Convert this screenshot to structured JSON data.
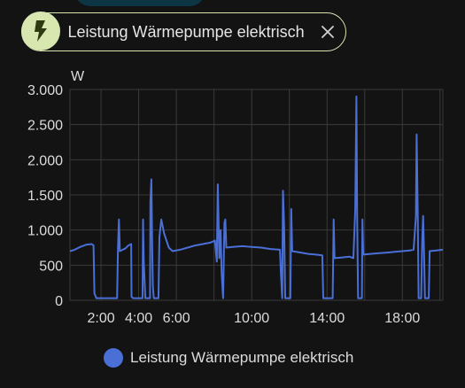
{
  "colors": {
    "background": "#131313",
    "chip_border": "#d8e6b0",
    "chip_icon_bg": "#d8e6b0",
    "series": "#4a6fd6",
    "grid": "#3a3a3a"
  },
  "filter_chip": {
    "icon": "lightning-bolt-icon",
    "label": "Leistung Wärmepumpe elektrisch",
    "close_icon": "close-icon"
  },
  "chart_data": {
    "type": "line",
    "ylabel": "W",
    "ylim": [
      0,
      3000
    ],
    "xlim": [
      0.35,
      20.15
    ],
    "y_ticks": [
      0,
      500,
      1000,
      1500,
      2000,
      2500,
      3000
    ],
    "y_tick_labels": [
      "0",
      "500",
      "1.000",
      "1.500",
      "2.000",
      "2.500",
      "3.000"
    ],
    "x_ticks": [
      2,
      4,
      6,
      10,
      14,
      18
    ],
    "x_tick_labels": [
      "2:00",
      "4:00",
      "6:00",
      "10:00",
      "14:00",
      "18:00"
    ],
    "x_grid": [
      2,
      4,
      6,
      8,
      10,
      12,
      14,
      16,
      18,
      20
    ],
    "grid": true,
    "legend": "bottom-center",
    "series": [
      {
        "name": "Leistung Wärmepumpe elektrisch",
        "points": [
          [
            0.35,
            700
          ],
          [
            0.6,
            720
          ],
          [
            0.9,
            760
          ],
          [
            1.2,
            790
          ],
          [
            1.5,
            800
          ],
          [
            1.6,
            780
          ],
          [
            1.65,
            100
          ],
          [
            1.75,
            30
          ],
          [
            2.5,
            30
          ],
          [
            2.85,
            30
          ],
          [
            2.9,
            750
          ],
          [
            2.95,
            1150
          ],
          [
            3.0,
            700
          ],
          [
            3.3,
            740
          ],
          [
            3.45,
            780
          ],
          [
            3.6,
            800
          ],
          [
            3.62,
            50
          ],
          [
            3.7,
            30
          ],
          [
            4.0,
            30
          ],
          [
            4.2,
            30
          ],
          [
            4.23,
            1150
          ],
          [
            4.27,
            550
          ],
          [
            4.35,
            30
          ],
          [
            4.6,
            30
          ],
          [
            4.62,
            1400
          ],
          [
            4.67,
            1720
          ],
          [
            4.72,
            700
          ],
          [
            4.75,
            200
          ],
          [
            4.8,
            30
          ],
          [
            5.0,
            30
          ],
          [
            5.05,
            30
          ],
          [
            5.1,
            900
          ],
          [
            5.2,
            1150
          ],
          [
            5.35,
            950
          ],
          [
            5.6,
            750
          ],
          [
            5.8,
            700
          ],
          [
            6.2,
            720
          ],
          [
            6.6,
            750
          ],
          [
            7.0,
            780
          ],
          [
            7.4,
            800
          ],
          [
            7.8,
            820
          ],
          [
            8.05,
            850
          ],
          [
            8.15,
            550
          ],
          [
            8.2,
            1650
          ],
          [
            8.28,
            600
          ],
          [
            8.35,
            1000
          ],
          [
            8.4,
            400
          ],
          [
            8.48,
            30
          ],
          [
            8.55,
            1100
          ],
          [
            8.6,
            1150
          ],
          [
            8.65,
            750
          ],
          [
            9.0,
            760
          ],
          [
            9.5,
            770
          ],
          [
            10.0,
            760
          ],
          [
            10.5,
            750
          ],
          [
            11.0,
            730
          ],
          [
            11.5,
            720
          ],
          [
            11.55,
            400
          ],
          [
            11.62,
            30
          ],
          [
            11.66,
            1560
          ],
          [
            11.72,
            1050
          ],
          [
            11.78,
            30
          ],
          [
            12.05,
            30
          ],
          [
            12.1,
            1300
          ],
          [
            12.15,
            700
          ],
          [
            12.6,
            680
          ],
          [
            13.0,
            660
          ],
          [
            13.4,
            650
          ],
          [
            13.75,
            640
          ],
          [
            13.8,
            30
          ],
          [
            14.3,
            30
          ],
          [
            14.35,
            1150
          ],
          [
            14.4,
            600
          ],
          [
            14.8,
            610
          ],
          [
            15.2,
            620
          ],
          [
            15.4,
            600
          ],
          [
            15.5,
            1300
          ],
          [
            15.56,
            2900
          ],
          [
            15.6,
            1100
          ],
          [
            15.65,
            30
          ],
          [
            15.85,
            30
          ],
          [
            15.88,
            1150
          ],
          [
            15.92,
            650
          ],
          [
            16.3,
            660
          ],
          [
            16.8,
            670
          ],
          [
            17.2,
            680
          ],
          [
            17.6,
            690
          ],
          [
            18.0,
            700
          ],
          [
            18.4,
            710
          ],
          [
            18.6,
            720
          ],
          [
            18.72,
            1200
          ],
          [
            18.76,
            2360
          ],
          [
            18.82,
            1200
          ],
          [
            18.86,
            30
          ],
          [
            19.0,
            30
          ],
          [
            19.05,
            800
          ],
          [
            19.1,
            1200
          ],
          [
            19.15,
            700
          ],
          [
            19.2,
            30
          ],
          [
            19.4,
            30
          ],
          [
            19.45,
            700
          ],
          [
            19.8,
            710
          ],
          [
            20.15,
            720
          ]
        ]
      }
    ]
  }
}
